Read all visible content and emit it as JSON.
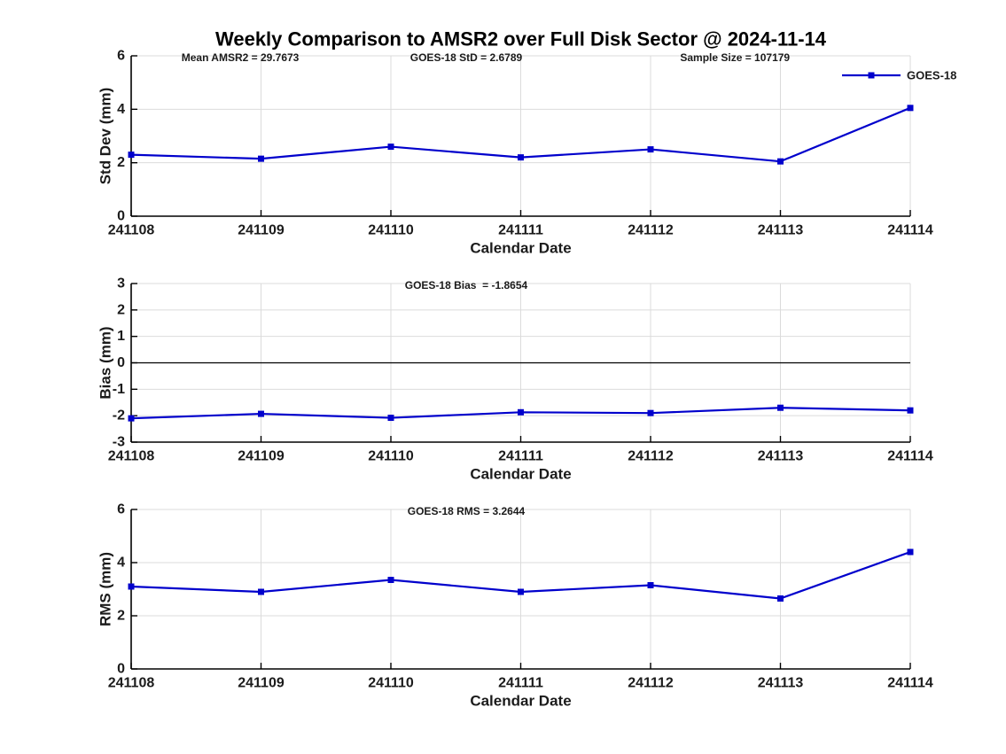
{
  "title": "Weekly Comparison to AMSR2 over Full Disk Sector @ 2024-11-14",
  "colors": {
    "line": "#0000CC",
    "grid": "#DBDBDB",
    "axis": "#000000",
    "text": "#1B1B1B"
  },
  "legend": {
    "label": "GOES-18",
    "position": "top-right"
  },
  "chart_data": [
    {
      "type": "line",
      "name": "std-dev",
      "annotations": [
        "Mean AMSR2 = 29.7673",
        "GOES-18 StD = 2.6789",
        "Sample Size = 107179"
      ],
      "categories": [
        "241108",
        "241109",
        "241110",
        "241111",
        "241112",
        "241113",
        "241114"
      ],
      "series": [
        {
          "name": "GOES-18",
          "values": [
            2.3,
            2.15,
            2.6,
            2.2,
            2.5,
            2.05,
            4.05
          ]
        }
      ],
      "xlabel": "Calendar Date",
      "ylabel": "Std Dev (mm)",
      "ylim": [
        0,
        6
      ],
      "yticks": [
        0,
        2,
        4,
        6
      ],
      "grid": true,
      "zero_line": false,
      "show_legend": true
    },
    {
      "type": "line",
      "name": "bias",
      "annotations": [
        "GOES-18 Bias  = -1.8654"
      ],
      "categories": [
        "241108",
        "241109",
        "241110",
        "241111",
        "241112",
        "241113",
        "241114"
      ],
      "series": [
        {
          "name": "GOES-18",
          "values": [
            -2.1,
            -1.93,
            -2.08,
            -1.87,
            -1.9,
            -1.7,
            -1.8
          ]
        }
      ],
      "xlabel": "Calendar Date",
      "ylabel": "Bias (mm)",
      "ylim": [
        -3,
        3
      ],
      "yticks": [
        -3,
        -2,
        -1,
        0,
        1,
        2,
        3
      ],
      "grid": true,
      "zero_line": true,
      "show_legend": false
    },
    {
      "type": "line",
      "name": "rms",
      "annotations": [
        "GOES-18 RMS = 3.2644"
      ],
      "categories": [
        "241108",
        "241109",
        "241110",
        "241111",
        "241112",
        "241113",
        "241114"
      ],
      "series": [
        {
          "name": "GOES-18",
          "values": [
            3.1,
            2.9,
            3.35,
            2.9,
            3.15,
            2.65,
            4.4
          ]
        }
      ],
      "xlabel": "Calendar Date",
      "ylabel": "RMS (mm)",
      "ylim": [
        0,
        6
      ],
      "yticks": [
        0,
        2,
        4,
        6
      ],
      "grid": true,
      "zero_line": false,
      "show_legend": false
    }
  ]
}
